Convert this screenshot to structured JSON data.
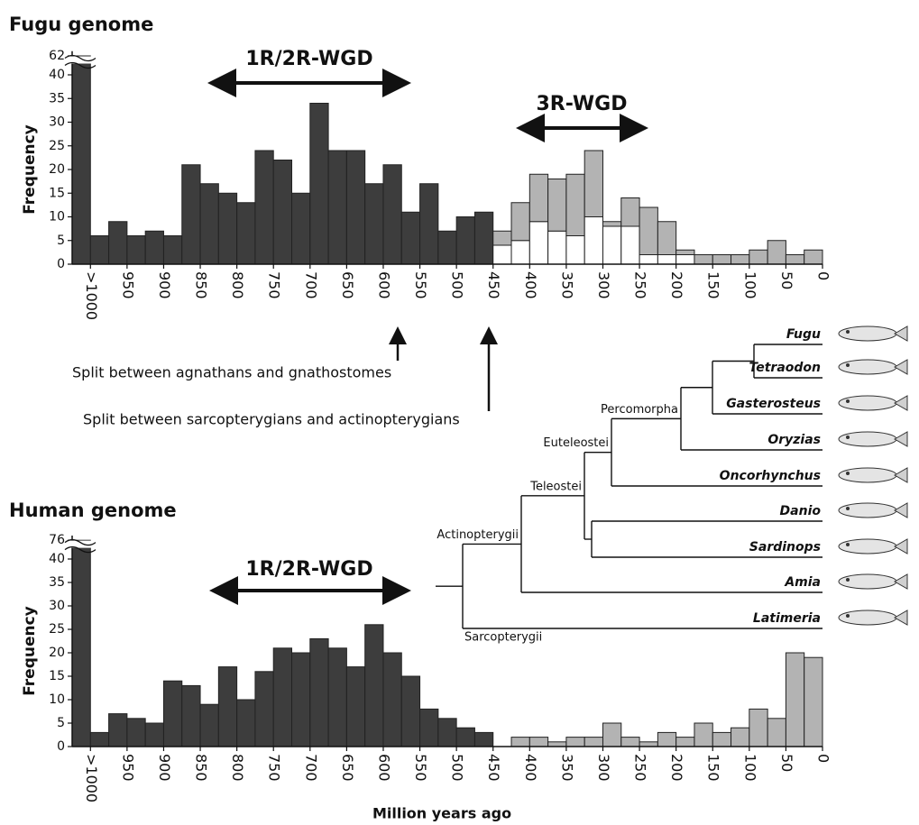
{
  "chart_data": [
    {
      "type": "histogram",
      "title": "Fugu genome",
      "ylabel": "Frequency",
      "bins": [
        1025,
        1000,
        975,
        950,
        925,
        900,
        875,
        850,
        825,
        800,
        775,
        750,
        725,
        700,
        675,
        650,
        625,
        600,
        575,
        550,
        525,
        500,
        475,
        450,
        425,
        400,
        375,
        350,
        325,
        300,
        275,
        250,
        225,
        200,
        175,
        150,
        125,
        100,
        75,
        50,
        25,
        0
      ],
      "series": [
        {
          "color": "#3d3d3d",
          "values": [
            62,
            6,
            9,
            6,
            7,
            6,
            21,
            17,
            15,
            13,
            24,
            22,
            15,
            34,
            24,
            24,
            17,
            21,
            11,
            17,
            7,
            10,
            11,
            null,
            null,
            null,
            null,
            null,
            null,
            null,
            null,
            null,
            null,
            null,
            null,
            null,
            null,
            null,
            null,
            null,
            null
          ]
        },
        {
          "color": "#ffffff",
          "values": [
            null,
            null,
            null,
            null,
            null,
            null,
            null,
            null,
            null,
            null,
            null,
            null,
            null,
            null,
            null,
            null,
            null,
            null,
            null,
            null,
            null,
            null,
            null,
            4,
            5,
            9,
            7,
            6,
            10,
            8,
            8,
            2,
            2,
            2,
            null,
            null,
            null,
            null,
            null,
            null,
            null
          ]
        },
        {
          "color": "#b3b3b3",
          "values": [
            null,
            null,
            null,
            null,
            null,
            null,
            null,
            null,
            null,
            null,
            null,
            null,
            null,
            null,
            null,
            null,
            null,
            null,
            null,
            null,
            null,
            null,
            null,
            3,
            8,
            10,
            11,
            13,
            14,
            1,
            6,
            10,
            7,
            1,
            2,
            2,
            2,
            3,
            5,
            2,
            3
          ]
        }
      ],
      "xlim": [
        1025,
        0
      ],
      "xticks": [
        {
          "value": 1000,
          "label": ">1000"
        },
        950,
        900,
        850,
        800,
        750,
        700,
        650,
        600,
        550,
        500,
        450,
        400,
        350,
        300,
        250,
        200,
        150,
        100,
        50,
        0
      ],
      "ylim": [
        0,
        63
      ],
      "ybreak": [
        42,
        60
      ],
      "yticks": [
        0,
        5,
        10,
        15,
        20,
        25,
        30,
        35,
        40,
        62
      ],
      "annotations": [
        "1R/2R-WGD",
        "3R-WGD"
      ]
    },
    {
      "type": "histogram",
      "title": "Human genome",
      "ylabel": "Frequency",
      "xlabel": "Million years ago",
      "bins": [
        1025,
        1000,
        975,
        950,
        925,
        900,
        875,
        850,
        825,
        800,
        775,
        750,
        725,
        700,
        675,
        650,
        625,
        600,
        575,
        550,
        525,
        500,
        475,
        450,
        425,
        400,
        375,
        350,
        325,
        300,
        275,
        250,
        225,
        200,
        175,
        150,
        125,
        100,
        75,
        50,
        25,
        0
      ],
      "series": [
        {
          "color": "#3d3d3d",
          "values": [
            76,
            3,
            7,
            6,
            5,
            14,
            13,
            9,
            17,
            10,
            16,
            21,
            20,
            23,
            21,
            17,
            26,
            20,
            15,
            8,
            6,
            4,
            3,
            null,
            null,
            null,
            null,
            null,
            null,
            null,
            null,
            null,
            null,
            null,
            null,
            null,
            null,
            null,
            null,
            null,
            null
          ]
        },
        {
          "color": "#b3b3b3",
          "values": [
            null,
            null,
            null,
            null,
            null,
            null,
            null,
            null,
            null,
            null,
            null,
            null,
            null,
            null,
            null,
            null,
            null,
            null,
            null,
            null,
            null,
            null,
            null,
            null,
            2,
            2,
            1,
            2,
            2,
            5,
            2,
            1,
            3,
            2,
            5,
            3,
            4,
            8,
            6,
            20,
            19
          ]
        }
      ],
      "xlim": [
        1025,
        0
      ],
      "xticks": [
        {
          "value": 1000,
          "label": ">1000"
        },
        950,
        900,
        850,
        800,
        750,
        700,
        650,
        600,
        550,
        500,
        450,
        400,
        350,
        300,
        250,
        200,
        150,
        100,
        50,
        0
      ],
      "ylim": [
        0,
        77
      ],
      "ybreak": [
        42,
        74
      ],
      "yticks": [
        0,
        5,
        10,
        15,
        20,
        25,
        30,
        35,
        40,
        76
      ],
      "annotations": [
        "1R/2R-WGD"
      ]
    }
  ],
  "splits": [
    "Split between agnathans and gnathostomes",
    "Split between sarcopterygians and actinopterygians"
  ],
  "tree": {
    "taxa": [
      "Fugu",
      "Tetraodon",
      "Gasterosteus",
      "Oryzias",
      "Oncorhynchus",
      "Danio",
      "Sardinops",
      "Amia",
      "Latimeria"
    ],
    "clades": [
      "Percomorpha",
      "Euteleostei",
      "Teleostei",
      "Actinopterygii",
      "Sarcopterygii"
    ]
  }
}
